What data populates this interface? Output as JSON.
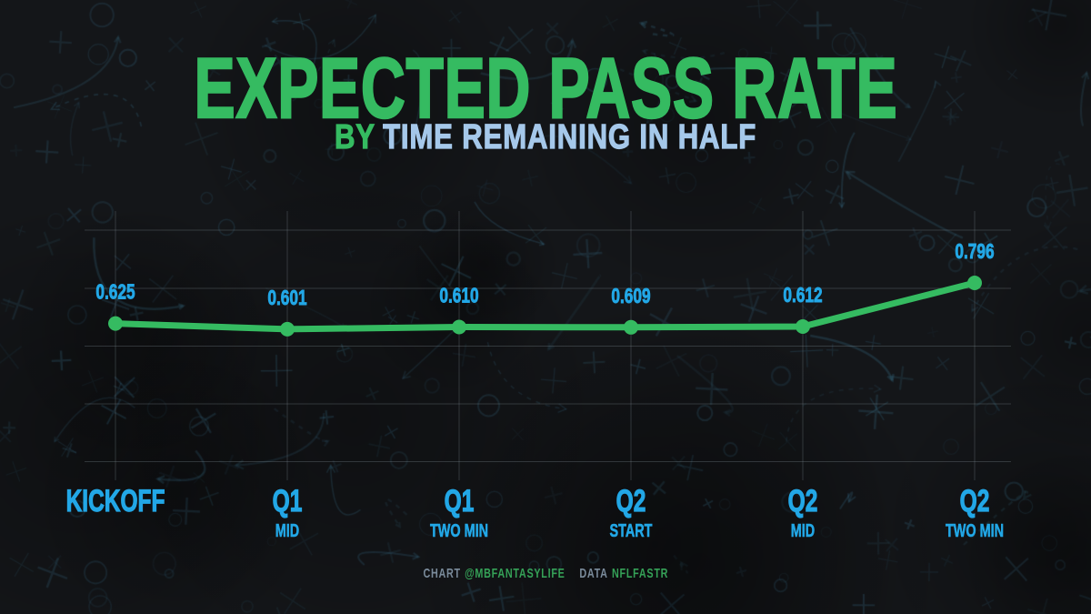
{
  "title": "EXPECTED PASS RATE",
  "subtitle": {
    "prefix": "BY",
    "text": "TIME REMAINING IN HALF"
  },
  "footer": {
    "chart_label": "CHART",
    "chart_handle": "@MBFANTASYLIFE",
    "data_label": "DATA",
    "data_source": "NFLFASTR"
  },
  "colors": {
    "background": "#141619",
    "green": "#35BB61",
    "blue": "#22A7E6",
    "light_blue": "#A5C8EA",
    "grid": "#98A6AD",
    "footer_gray": "#7A8B9B",
    "footer_green": "#35A157",
    "texture_stroke": "#4D9EC4"
  },
  "chart_data": {
    "type": "line",
    "title": "EXPECTED PASS RATE",
    "subtitle": "BY TIME REMAINING IN HALF",
    "categories": [
      {
        "main": "KICKOFF",
        "sub": ""
      },
      {
        "main": "Q1",
        "sub": "MID"
      },
      {
        "main": "Q1",
        "sub": "TWO MIN"
      },
      {
        "main": "Q2",
        "sub": "START"
      },
      {
        "main": "Q2",
        "sub": "MID"
      },
      {
        "main": "Q2",
        "sub": "TWO MIN"
      }
    ],
    "series": [
      {
        "name": "Expected Pass Rate",
        "values": [
          0.625,
          0.601,
          0.61,
          0.609,
          0.612,
          0.796
        ]
      }
    ],
    "point_labels": [
      "0.625",
      "0.601",
      "0.610",
      "0.609",
      "0.612",
      "0.796"
    ],
    "grid": true,
    "legend": false,
    "y_tick_labels": "none",
    "x_axis_position": "bottom"
  }
}
